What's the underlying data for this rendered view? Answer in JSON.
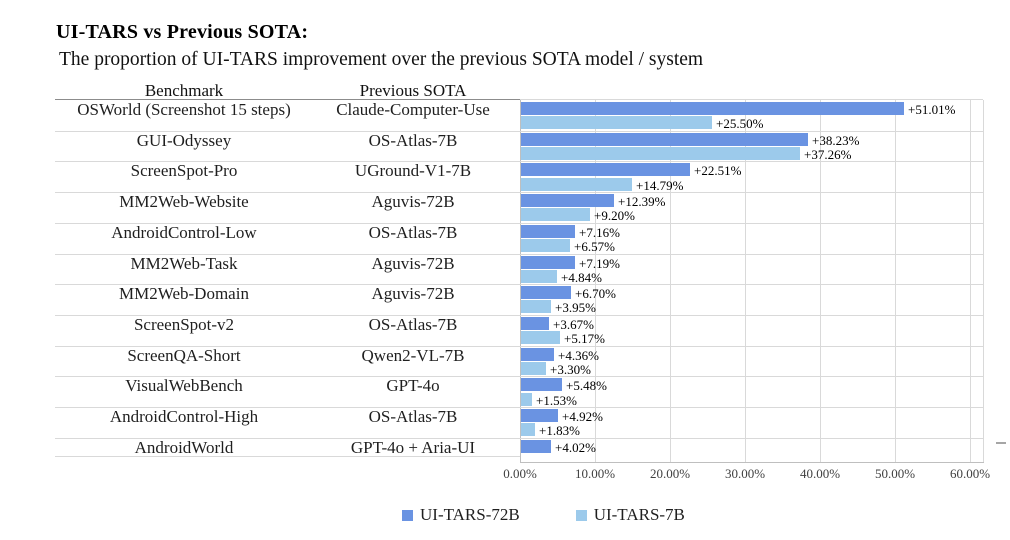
{
  "title": "UI-TARS vs Previous SOTA:",
  "subtitle": "The proportion of UI-TARS improvement over the previous SOTA model / system",
  "columns": {
    "benchmark": "Benchmark",
    "previous_sota": "Previous SOTA"
  },
  "colors": {
    "tars72b": "#6A93E2",
    "tars7b": "#9CCAEB",
    "gridline": "#d9d9d9",
    "axis_line": "#bfbfbf",
    "header_underline": "#8c8c8c"
  },
  "legend": {
    "items": [
      {
        "label": "UI-TARS-72B",
        "color_key": "tars72b"
      },
      {
        "label": "UI-TARS-7B",
        "color_key": "tars7b"
      }
    ]
  },
  "x_axis": {
    "tick_labels": [
      "0.00%",
      "10.00%",
      "20.00%",
      "30.00%",
      "40.00%",
      "50.00%",
      "60.00%"
    ],
    "min_pct": 0,
    "max_pct": 60
  },
  "chart_data": {
    "type": "bar",
    "orientation": "horizontal",
    "title": "UI-TARS vs Previous SOTA:",
    "subtitle": "The proportion of UI-TARS improvement over the previous SOTA model / system",
    "xlabel": "",
    "ylabel": "",
    "xlim": [
      0,
      60
    ],
    "x_tick_labels": [
      "0.00%",
      "10.00%",
      "20.00%",
      "30.00%",
      "40.00%",
      "50.00%",
      "60.00%"
    ],
    "grid": true,
    "legend_position": "bottom",
    "categories": [
      "OSWorld (Screenshot 15 steps)",
      "GUI-Odyssey",
      "ScreenSpot-Pro",
      "MM2Web-Website",
      "AndroidControl-Low",
      "MM2Web-Task",
      "MM2Web-Domain",
      "ScreenSpot-v2",
      "ScreenQA-Short",
      "VisualWebBench",
      "AndroidControl-High",
      "AndroidWorld"
    ],
    "previous_sota": [
      "Claude-Computer-Use",
      "OS-Atlas-7B",
      "UGround-V1-7B",
      "Aguvis-72B",
      "OS-Atlas-7B",
      "Aguvis-72B",
      "Aguvis-72B",
      "OS-Atlas-7B",
      "Qwen2-VL-7B",
      "GPT-4o",
      "OS-Atlas-7B",
      "GPT-4o + Aria-UI"
    ],
    "series": [
      {
        "name": "UI-TARS-72B",
        "values": [
          51.01,
          38.23,
          22.51,
          12.39,
          7.16,
          7.19,
          6.7,
          3.67,
          4.36,
          5.48,
          4.92,
          4.02
        ]
      },
      {
        "name": "UI-TARS-7B",
        "values": [
          25.5,
          37.26,
          14.79,
          9.2,
          6.57,
          4.84,
          3.95,
          5.17,
          3.3,
          1.53,
          1.83,
          null
        ]
      }
    ],
    "rows": [
      {
        "benchmark": "OSWorld (Screenshot 15 steps)",
        "previous_sota": "Claude-Computer-Use",
        "v72b": 51.01,
        "label72b": "+51.01%",
        "v7b": 25.5,
        "label7b": "+25.50%"
      },
      {
        "benchmark": "GUI-Odyssey",
        "previous_sota": "OS-Atlas-7B",
        "v72b": 38.23,
        "label72b": "+38.23%",
        "v7b": 37.26,
        "label7b": "+37.26%"
      },
      {
        "benchmark": "ScreenSpot-Pro",
        "previous_sota": "UGround-V1-7B",
        "v72b": 22.51,
        "label72b": "+22.51%",
        "v7b": 14.79,
        "label7b": "+14.79%"
      },
      {
        "benchmark": "MM2Web-Website",
        "previous_sota": "Aguvis-72B",
        "v72b": 12.39,
        "label72b": "+12.39%",
        "v7b": 9.2,
        "label7b": "+9.20%"
      },
      {
        "benchmark": "AndroidControl-Low",
        "previous_sota": "OS-Atlas-7B",
        "v72b": 7.16,
        "label72b": "+7.16%",
        "v7b": 6.57,
        "label7b": "+6.57%"
      },
      {
        "benchmark": "MM2Web-Task",
        "previous_sota": "Aguvis-72B",
        "v72b": 7.19,
        "label72b": "+7.19%",
        "v7b": 4.84,
        "label7b": "+4.84%"
      },
      {
        "benchmark": "MM2Web-Domain",
        "previous_sota": "Aguvis-72B",
        "v72b": 6.7,
        "label72b": "+6.70%",
        "v7b": 3.95,
        "label7b": "+3.95%"
      },
      {
        "benchmark": "ScreenSpot-v2",
        "previous_sota": "OS-Atlas-7B",
        "v72b": 3.67,
        "label72b": "+3.67%",
        "v7b": 5.17,
        "label7b": "+5.17%"
      },
      {
        "benchmark": "ScreenQA-Short",
        "previous_sota": "Qwen2-VL-7B",
        "v72b": 4.36,
        "label72b": "+4.36%",
        "v7b": 3.3,
        "label7b": "+3.30%"
      },
      {
        "benchmark": "VisualWebBench",
        "previous_sota": "GPT-4o",
        "v72b": 5.48,
        "label72b": "+5.48%",
        "v7b": 1.53,
        "label7b": "+1.53%"
      },
      {
        "benchmark": "AndroidControl-High",
        "previous_sota": "OS-Atlas-7B",
        "v72b": 4.92,
        "label72b": "+4.92%",
        "v7b": 1.83,
        "label7b": "+1.83%"
      },
      {
        "benchmark": "AndroidWorld",
        "previous_sota": "GPT-4o + Aria-UI",
        "v72b": 4.02,
        "label72b": "+4.02%",
        "v7b": null,
        "label7b": null
      }
    ]
  }
}
